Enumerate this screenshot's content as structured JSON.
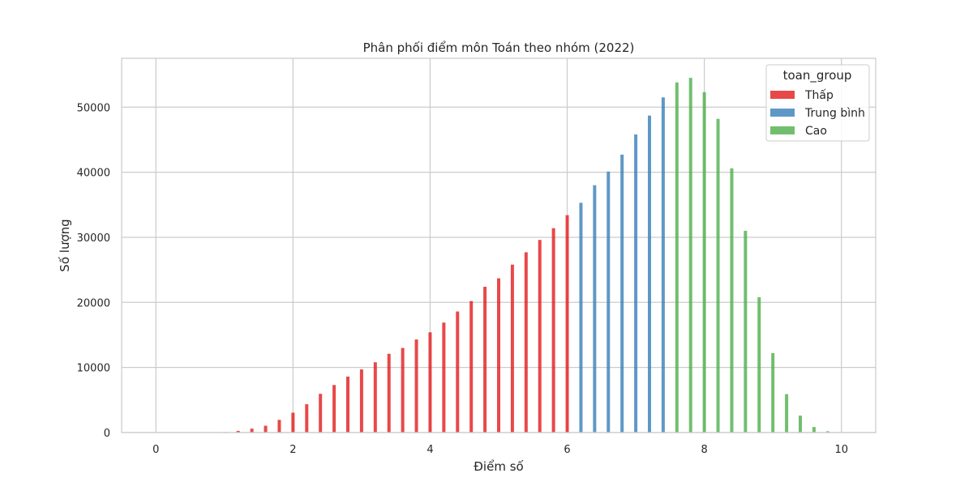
{
  "chart_data": {
    "type": "bar",
    "title": "Phân phối điểm môn Toán theo nhóm (2022)",
    "xlabel": "Điểm số",
    "ylabel": "Số lượng",
    "xlim": [
      -0.5,
      10.5
    ],
    "ylim": [
      0,
      57500
    ],
    "xticks": [
      0,
      2,
      4,
      6,
      8,
      10
    ],
    "yticks": [
      0,
      10000,
      20000,
      30000,
      40000,
      50000
    ],
    "grid": true,
    "legend": {
      "title": "toan_group",
      "placement": "top-right"
    },
    "series": [
      {
        "name": "Thấp",
        "color": "#e41a1c",
        "x": [
          0.2,
          0.4,
          0.6,
          0.8,
          1.0,
          1.2,
          1.4,
          1.6,
          1.8,
          2.0,
          2.2,
          2.4,
          2.6,
          2.8,
          3.0,
          3.2,
          3.4,
          3.6,
          3.8,
          4.0,
          4.2,
          4.4,
          4.6,
          4.8,
          5.0,
          5.2,
          5.4,
          5.6,
          5.8,
          6.0
        ],
        "values": [
          0,
          0,
          0,
          20,
          80,
          250,
          600,
          1050,
          1950,
          3050,
          4350,
          5950,
          7300,
          8600,
          9700,
          10800,
          12100,
          13000,
          14300,
          15400,
          16900,
          18600,
          20200,
          22400,
          23700,
          25800,
          27700,
          29600,
          31400,
          33400
        ]
      },
      {
        "name": "Trung bình",
        "color": "#377eb8",
        "x": [
          6.2,
          6.4,
          6.6,
          6.8,
          7.0,
          7.2,
          7.4
        ],
        "values": [
          35300,
          38000,
          40100,
          42700,
          45800,
          48700,
          51500
        ]
      },
      {
        "name": "Cao",
        "color": "#4daf4a",
        "x": [
          7.6,
          7.8,
          8.0,
          8.2,
          8.4,
          8.6,
          8.8,
          9.0,
          9.2,
          9.4,
          9.6,
          9.8
        ],
        "values": [
          53800,
          54500,
          52300,
          48200,
          40600,
          31000,
          20800,
          12200,
          5900,
          2600,
          850,
          200
        ]
      }
    ]
  }
}
